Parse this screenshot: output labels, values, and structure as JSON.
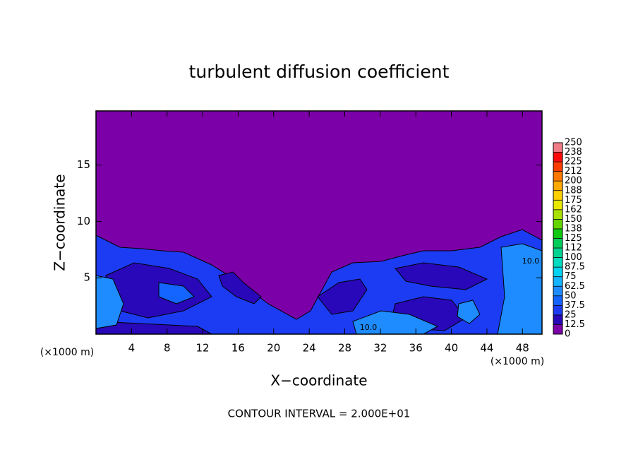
{
  "chart_data": {
    "type": "contour",
    "title": "turbulent diffusion coefficient",
    "x_label": "X−coordinate",
    "y_label": "Z−coordinate",
    "x_unit": "(×1000 m)",
    "y_unit": "(×1000 m)",
    "annotation": "CONTOUR INTERVAL = 2.000E+01",
    "contour_labels": [
      "10.0",
      "10.0"
    ],
    "xlim": [
      0,
      50.2
    ],
    "xticks": [
      4,
      8,
      12,
      16,
      20,
      24,
      28,
      32,
      36,
      40,
      44,
      48
    ],
    "ylim": [
      0,
      19.8
    ],
    "yticks": [
      5,
      10,
      15
    ],
    "colorbar": {
      "ticks": [
        0,
        12.5,
        25,
        37.5,
        50,
        62.5,
        75,
        87.5,
        100,
        {
          "value": 112.5,
          "label": "112"
        },
        125,
        {
          "value": 137.5,
          "label": "138"
        },
        150,
        {
          "value": 162.5,
          "label": "162"
        },
        175,
        {
          "value": 187.5,
          "label": "188"
        },
        200,
        {
          "value": 212.5,
          "label": "212"
        },
        225,
        {
          "value": 237.5,
          "label": "238"
        },
        250
      ],
      "colors": [
        "#7c00a8",
        "#2808b8",
        "#1c3cf4",
        "#1464ff",
        "#1e8cff",
        "#14b4ff",
        "#00d2f0",
        "#00dcc0",
        "#00d490",
        "#00cc5a",
        "#10c810",
        "#64d400",
        "#a8e000",
        "#e8e800",
        "#ffd000",
        "#ffa800",
        "#ff7800",
        "#ff3c00",
        "#ff0a0a",
        "#f07c88"
      ]
    }
  }
}
